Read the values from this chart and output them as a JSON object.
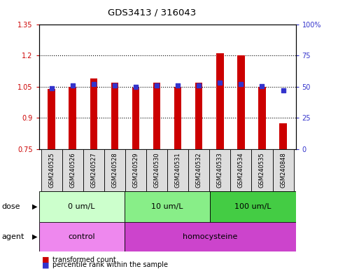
{
  "title": "GDS3413 / 316043",
  "samples": [
    "GSM240525",
    "GSM240526",
    "GSM240527",
    "GSM240528",
    "GSM240529",
    "GSM240530",
    "GSM240531",
    "GSM240532",
    "GSM240533",
    "GSM240534",
    "GSM240535",
    "GSM240848"
  ],
  "red_values": [
    1.04,
    1.05,
    1.09,
    1.07,
    1.047,
    1.07,
    1.05,
    1.07,
    1.21,
    1.2,
    1.05,
    0.875
  ],
  "blue_values_pct": [
    49,
    51,
    52,
    51,
    50,
    51,
    51,
    51,
    53,
    52,
    50.5,
    47
  ],
  "ylim_left": [
    0.75,
    1.35
  ],
  "ylim_right": [
    0,
    100
  ],
  "yticks_left": [
    0.75,
    0.9,
    1.05,
    1.2,
    1.35
  ],
  "yticks_right": [
    0,
    25,
    50,
    75,
    100
  ],
  "ytick_labels_left": [
    "0.75",
    "0.9",
    "1.05",
    "1.2",
    "1.35"
  ],
  "ytick_labels_right": [
    "0",
    "25",
    "50",
    "75",
    "100%"
  ],
  "red_color": "#cc0000",
  "blue_color": "#3333cc",
  "bar_bottom": 0.75,
  "dose_groups": [
    {
      "label": "0 um/L",
      "start": 0,
      "end": 4,
      "color": "#ccffcc"
    },
    {
      "label": "10 um/L",
      "start": 4,
      "end": 8,
      "color": "#88ee88"
    },
    {
      "label": "100 um/L",
      "start": 8,
      "end": 12,
      "color": "#44cc44"
    }
  ],
  "agent_groups": [
    {
      "label": "control",
      "start": 0,
      "end": 4,
      "color": "#ee88ee"
    },
    {
      "label": "homocysteine",
      "start": 4,
      "end": 12,
      "color": "#dd55dd"
    }
  ],
  "legend_red": "transformed count",
  "legend_blue": "percentile rank within the sample",
  "dose_label": "dose",
  "agent_label": "agent",
  "hline_values": [
    0.9,
    1.05,
    1.2
  ],
  "hline_color": "#000000",
  "sample_box_color": "#dddddd",
  "bar_width": 0.35
}
